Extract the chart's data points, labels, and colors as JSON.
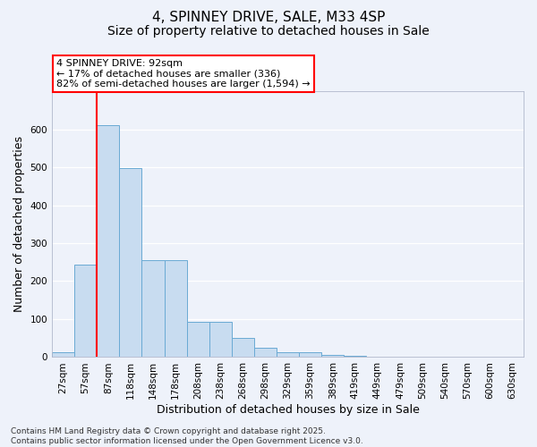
{
  "title_line1": "4, SPINNEY DRIVE, SALE, M33 4SP",
  "title_line2": "Size of property relative to detached houses in Sale",
  "xlabel": "Distribution of detached houses by size in Sale",
  "ylabel": "Number of detached properties",
  "categories": [
    "27sqm",
    "57sqm",
    "87sqm",
    "118sqm",
    "148sqm",
    "178sqm",
    "208sqm",
    "238sqm",
    "268sqm",
    "298sqm",
    "329sqm",
    "359sqm",
    "389sqm",
    "419sqm",
    "449sqm",
    "479sqm",
    "509sqm",
    "540sqm",
    "570sqm",
    "600sqm",
    "630sqm"
  ],
  "values": [
    12,
    243,
    610,
    497,
    255,
    255,
    94,
    94,
    50,
    25,
    14,
    12,
    5,
    3,
    1,
    0,
    0,
    1,
    0,
    0,
    0
  ],
  "bar_color": "#c8dcf0",
  "bar_edge_color": "#6aaad4",
  "vline_color": "red",
  "vline_x_index": 2,
  "annotation_text": "4 SPINNEY DRIVE: 92sqm\n← 17% of detached houses are smaller (336)\n82% of semi-detached houses are larger (1,594) →",
  "annotation_box_edgecolor": "red",
  "annotation_bg_color": "white",
  "ylim": [
    0,
    700
  ],
  "yticks": [
    0,
    100,
    200,
    300,
    400,
    500,
    600
  ],
  "footer_line1": "Contains HM Land Registry data © Crown copyright and database right 2025.",
  "footer_line2": "Contains public sector information licensed under the Open Government Licence v3.0.",
  "bg_color": "#eef2fa",
  "grid_color": "#ffffff",
  "title_fontsize": 11,
  "subtitle_fontsize": 10,
  "axis_label_fontsize": 9,
  "tick_fontsize": 7.5,
  "annotation_fontsize": 8,
  "footer_fontsize": 6.5
}
